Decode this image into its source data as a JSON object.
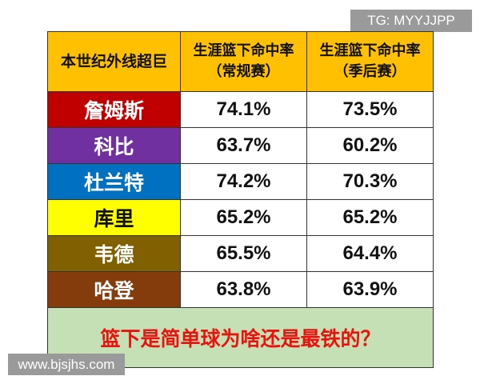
{
  "watermark_top": "TG: MYYJJPP",
  "watermark_bottom": "www.bjsjhs.com",
  "table": {
    "header": {
      "col1": "本世纪外线超巨",
      "col2_line1": "生涯篮下命中率",
      "col2_line2": "（常规赛）",
      "col3_line1": "生涯篮下命中率",
      "col3_line2": "（季后赛）"
    },
    "rows": [
      {
        "name": "詹姆斯",
        "regular": "74.1%",
        "playoffs": "73.5%",
        "color": "#c00000"
      },
      {
        "name": "科比",
        "regular": "63.7%",
        "playoffs": "60.2%",
        "color": "#7030a0"
      },
      {
        "name": "杜兰特",
        "regular": "74.2%",
        "playoffs": "70.3%",
        "color": "#0070c0"
      },
      {
        "name": "库里",
        "regular": "65.2%",
        "playoffs": "65.2%",
        "color": "#ffff00"
      },
      {
        "name": "韦德",
        "regular": "65.5%",
        "playoffs": "64.4%",
        "color": "#806000"
      },
      {
        "name": "哈登",
        "regular": "63.8%",
        "playoffs": "63.9%",
        "color": "#843c0c"
      }
    ],
    "footer": "篮下是简单球为啥还是最铁的？"
  },
  "colors": {
    "header_bg": "#fec000",
    "footer_bg": "#c5e0b4",
    "footer_text": "#e8130e"
  }
}
